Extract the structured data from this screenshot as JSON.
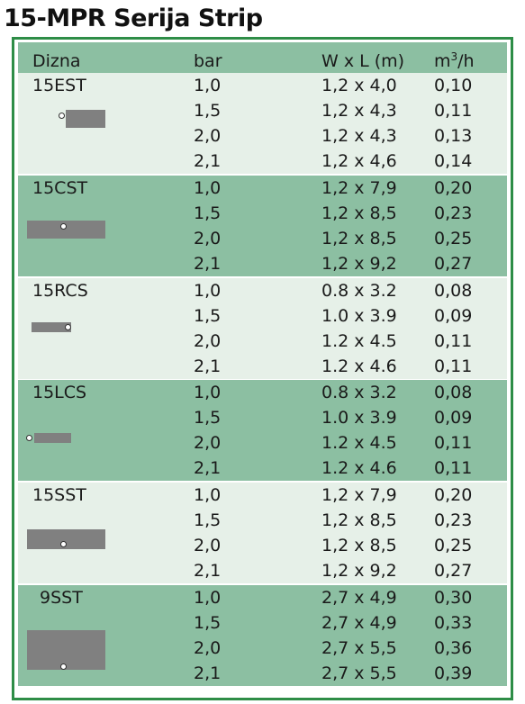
{
  "title": "15-MPR Serija Strip",
  "header": {
    "name": "Dizna",
    "bar": "bar",
    "wl": "W x L (m)",
    "m3": "m",
    "m3_sup": "3",
    "m3_tail": "/h"
  },
  "colors": {
    "border": "#2e8d47",
    "dark_row": "#8cbfa2",
    "light_row": "#e6f0e8",
    "shape": "#808080"
  },
  "groups": [
    {
      "name": "15EST",
      "icon": "strip-end-icon",
      "rows": [
        {
          "bar": "1,0",
          "wl": "1,2 x 4,0",
          "m3": "0,10"
        },
        {
          "bar": "1,5",
          "wl": "1,2 x 4,3",
          "m3": "0,11"
        },
        {
          "bar": "2,0",
          "wl": "1,2 x 4,3",
          "m3": "0,13"
        },
        {
          "bar": "2,1",
          "wl": "1,2 x 4,6",
          "m3": "0,14"
        }
      ]
    },
    {
      "name": "15CST",
      "icon": "strip-center-icon",
      "rows": [
        {
          "bar": "1,0",
          "wl": "1,2 x 7,9",
          "m3": "0,20"
        },
        {
          "bar": "1,5",
          "wl": "1,2 x 8,5",
          "m3": "0,23"
        },
        {
          "bar": "2,0",
          "wl": "1,2 x 8,5",
          "m3": "0,25"
        },
        {
          "bar": "2,1",
          "wl": "1,2 x 9,2",
          "m3": "0,27"
        }
      ]
    },
    {
      "name": "15RCS",
      "icon": "strip-right-corner-icon",
      "rows": [
        {
          "bar": "1,0",
          "wl": "0.8 x 3.2",
          "m3": "0,08"
        },
        {
          "bar": "1,5",
          "wl": "1.0 x 3.9",
          "m3": "0,09"
        },
        {
          "bar": "2,0",
          "wl": "1.2 x 4.5",
          "m3": "0,11"
        },
        {
          "bar": "2,1",
          "wl": "1.2 x 4.6",
          "m3": "0,11"
        }
      ]
    },
    {
      "name": "15LCS",
      "icon": "strip-left-corner-icon",
      "rows": [
        {
          "bar": "1,0",
          "wl": "0.8 x 3.2",
          "m3": "0,08"
        },
        {
          "bar": "1,5",
          "wl": "1.0 x 3.9",
          "m3": "0,09"
        },
        {
          "bar": "2,0",
          "wl": "1.2 x 4.5",
          "m3": "0,11"
        },
        {
          "bar": "2,1",
          "wl": "1.2 x 4.6",
          "m3": "0,11"
        }
      ]
    },
    {
      "name": "15SST",
      "icon": "strip-side-icon",
      "rows": [
        {
          "bar": "1,0",
          "wl": "1,2 x 7,9",
          "m3": "0,20"
        },
        {
          "bar": "1,5",
          "wl": "1,2 x 8,5",
          "m3": "0,23"
        },
        {
          "bar": "2,0",
          "wl": "1,2 x 8,5",
          "m3": "0,25"
        },
        {
          "bar": "2,1",
          "wl": "1,2 x 9,2",
          "m3": "0,27"
        }
      ]
    },
    {
      "name": "9SST",
      "icon": "strip-side-wide-icon",
      "rows": [
        {
          "bar": "1,0",
          "wl": "2,7 x 4,9",
          "m3": "0,30"
        },
        {
          "bar": "1,5",
          "wl": "2,7 x 4,9",
          "m3": "0,33"
        },
        {
          "bar": "2,0",
          "wl": "2,7 x 5,5",
          "m3": "0,36"
        },
        {
          "bar": "2,1",
          "wl": "2,7 x 5,5",
          "m3": "0,39"
        }
      ]
    }
  ]
}
